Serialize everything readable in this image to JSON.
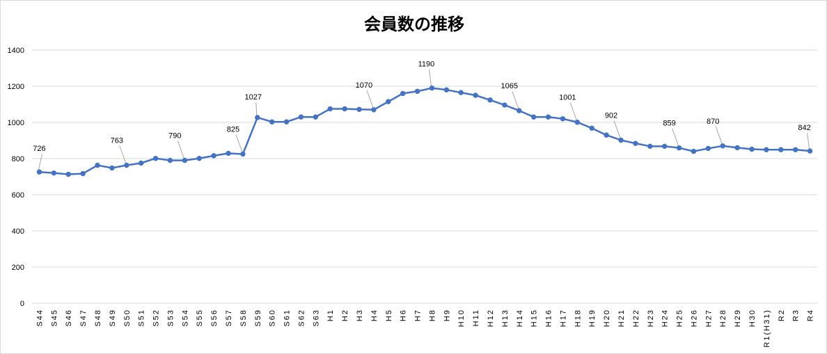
{
  "chart_data": {
    "type": "line",
    "title": "会員数の推移",
    "xlabel": "",
    "ylabel": "",
    "ylim": [
      0,
      1400
    ],
    "yticks": [
      0,
      200,
      400,
      600,
      800,
      1000,
      1200,
      1400
    ],
    "grid": true,
    "legend": "none",
    "line_color": "#4472c4",
    "categories": [
      "S44",
      "S45",
      "S46",
      "S47",
      "S48",
      "S49",
      "S50",
      "S51",
      "S52",
      "S53",
      "S54",
      "S55",
      "S56",
      "S57",
      "S58",
      "S59",
      "S60",
      "S61",
      "S62",
      "S63",
      "H1",
      "H2",
      "H3",
      "H4",
      "H5",
      "H6",
      "H7",
      "H8",
      "H9",
      "H10",
      "H11",
      "H12",
      "H13",
      "H14",
      "H15",
      "H16",
      "H17",
      "H18",
      "H19",
      "H20",
      "H21",
      "H22",
      "H23",
      "H24",
      "H25",
      "H26",
      "H27",
      "H28",
      "H29",
      "H30",
      "R1(H31)",
      "R2",
      "R3",
      "R4"
    ],
    "tick_labels": [
      "S44",
      "S45",
      "S46",
      "S47",
      "S48",
      "S49",
      "S50",
      "S51",
      "S52",
      "S53",
      "S54",
      "S55",
      "S56",
      "S57",
      "S58",
      "S59",
      "S60",
      "S61",
      "S62",
      "S63",
      "H1",
      "H2",
      "H3",
      "H4",
      "H5",
      "H6",
      "H7",
      "H8",
      "H9",
      "H10",
      "H11",
      "H12",
      "H13",
      "H14",
      "H15",
      "H16",
      "H17",
      "H18",
      "H19",
      "H20",
      "H21",
      "H22",
      "H23",
      "H24",
      "H25",
      "H26",
      "H27",
      "H28",
      "H29",
      "H30",
      "R1(H31)",
      "R2",
      "R3",
      "R4"
    ],
    "series": [
      {
        "values": [
          726,
          720,
          713,
          717,
          763,
          748,
          763,
          775,
          801,
          790,
          790,
          801,
          816,
          829,
          825,
          1027,
          1003,
          1003,
          1030,
          1030,
          1075,
          1075,
          1072,
          1070,
          1115,
          1160,
          1172,
          1190,
          1180,
          1165,
          1150,
          1124,
          1096,
          1065,
          1030,
          1030,
          1020,
          1001,
          968,
          930,
          902,
          884,
          868,
          868,
          859,
          840,
          856,
          870,
          860,
          852,
          849,
          849,
          849,
          842
        ]
      }
    ],
    "data_labels": [
      {
        "index": 0,
        "text": "726"
      },
      {
        "index": 6,
        "text": "763"
      },
      {
        "index": 10,
        "text": "790"
      },
      {
        "index": 14,
        "text": "825"
      },
      {
        "index": 15,
        "text": "1027"
      },
      {
        "index": 23,
        "text": "1070"
      },
      {
        "index": 27,
        "text": "1190"
      },
      {
        "index": 33,
        "text": "1065"
      },
      {
        "index": 37,
        "text": "1001"
      },
      {
        "index": 40,
        "text": "902"
      },
      {
        "index": 44,
        "text": "859"
      },
      {
        "index": 47,
        "text": "870"
      },
      {
        "index": 53,
        "text": "842"
      }
    ]
  }
}
